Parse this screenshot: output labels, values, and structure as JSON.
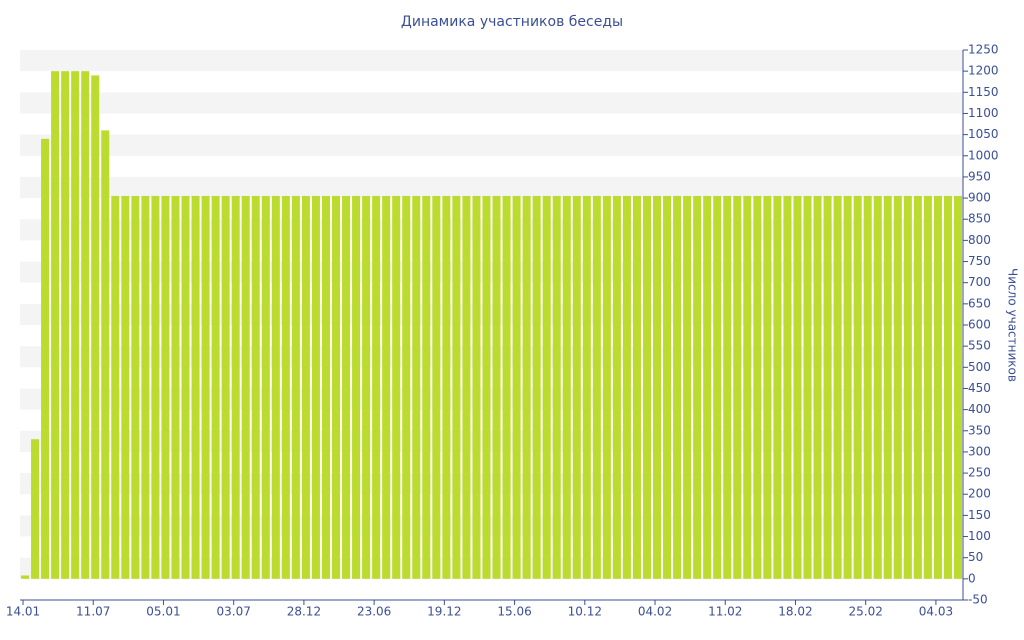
{
  "chart_data": {
    "type": "bar",
    "title": "Динамика участников беседы",
    "y_label": "Число участников",
    "categories": [
      "14.01",
      null,
      null,
      null,
      null,
      null,
      null,
      "11.07",
      null,
      null,
      null,
      null,
      null,
      null,
      "05.01",
      null,
      null,
      null,
      null,
      null,
      null,
      "03.07",
      null,
      null,
      null,
      null,
      null,
      null,
      "28.12",
      null,
      null,
      null,
      null,
      null,
      null,
      "23.06",
      null,
      null,
      null,
      null,
      null,
      null,
      "19.12",
      null,
      null,
      null,
      null,
      null,
      null,
      "15.06",
      null,
      null,
      null,
      null,
      null,
      null,
      "10.12",
      null,
      null,
      null,
      null,
      null,
      null,
      "04.02",
      null,
      null,
      null,
      null,
      null,
      null,
      "11.02",
      null,
      null,
      null,
      null,
      null,
      null,
      "18.02",
      null,
      null,
      null,
      null,
      null,
      null,
      "25.02",
      null,
      null,
      null,
      null,
      null,
      null,
      "04.03",
      null,
      null
    ],
    "values": [
      8,
      330,
      1040,
      1200,
      1200,
      1200,
      1200,
      1190,
      1060,
      905,
      905,
      905,
      905,
      905,
      905,
      905,
      905,
      905,
      905,
      905,
      905,
      905,
      905,
      905,
      905,
      905,
      905,
      905,
      905,
      905,
      905,
      905,
      905,
      905,
      905,
      905,
      905,
      905,
      905,
      905,
      905,
      905,
      905,
      905,
      905,
      905,
      905,
      905,
      905,
      905,
      905,
      905,
      905,
      905,
      905,
      905,
      905,
      905,
      905,
      905,
      905,
      905,
      905,
      905,
      905,
      905,
      905,
      905,
      905,
      905,
      905,
      905,
      905,
      905,
      905,
      905,
      905,
      905,
      905,
      905,
      905,
      905,
      905,
      905,
      905,
      905,
      905,
      905,
      905,
      905,
      905,
      905,
      905,
      905
    ],
    "color": "#bcdb2f",
    "ylim": [
      -50,
      1250
    ],
    "yticks": [
      -50,
      0,
      50,
      100,
      150,
      200,
      250,
      300,
      350,
      400,
      450,
      500,
      550,
      600,
      650,
      700,
      750,
      800,
      850,
      900,
      950,
      1000,
      1050,
      1100,
      1150,
      1200,
      1250
    ],
    "grid": true
  }
}
